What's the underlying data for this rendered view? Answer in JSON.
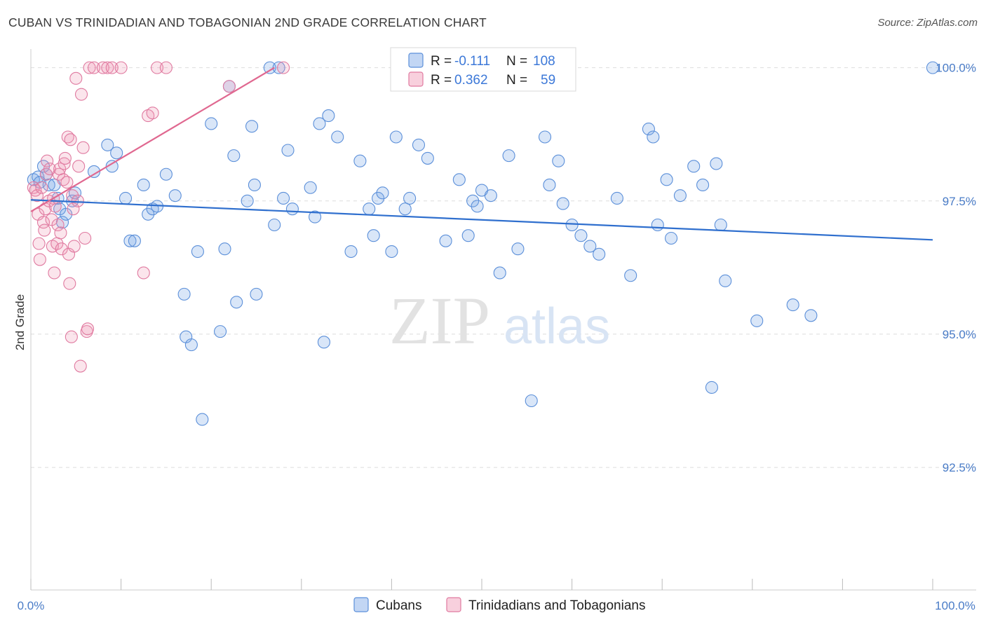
{
  "title": "CUBAN VS TRINIDADIAN AND TOBAGONIAN 2ND GRADE CORRELATION CHART",
  "source": "Source: ZipAtlas.com",
  "colors": {
    "cubans": "#5b8fd9",
    "cubans_fill": "rgba(120,165,230,0.28)",
    "cubans_line": "#2f6fce",
    "tt": "#e07aa0",
    "tt_fill": "rgba(240,150,180,0.25)",
    "tt_line": "#e06890",
    "grid": "#dddddd",
    "tick": "#4a7cc7"
  },
  "legend": {
    "r_label": "R =",
    "n_label": "N =",
    "cubans_r": "-0.111",
    "cubans_n": "108",
    "tt_r": "0.362",
    "tt_n": "59"
  },
  "watermark": {
    "zip": "ZIP",
    "atlas": "atlas"
  },
  "chart_data": {
    "type": "scatter",
    "xlabel": "",
    "ylabel": "2nd Grade",
    "xlim": [
      0,
      100
    ],
    "ylim": [
      90.2,
      100.35
    ],
    "x_tick_labels": [
      "0.0%",
      "100.0%"
    ],
    "y_ticks": [
      {
        "value": 100.0,
        "label": "100.0%"
      },
      {
        "value": 97.5,
        "label": "97.5%"
      },
      {
        "value": 95.0,
        "label": "95.0%"
      },
      {
        "value": 92.5,
        "label": "92.5%"
      }
    ],
    "series": [
      {
        "name": "Cubans",
        "trend": {
          "x0": 0,
          "y0": 97.52,
          "x1": 100,
          "y1": 96.77
        },
        "points": [
          [
            0.3,
            97.9
          ],
          [
            0.8,
            97.95
          ],
          [
            1.0,
            97.85
          ],
          [
            1.4,
            98.15
          ],
          [
            1.7,
            98.0
          ],
          [
            2.0,
            97.8
          ],
          [
            2.6,
            97.8
          ],
          [
            3.0,
            97.55
          ],
          [
            3.2,
            97.35
          ],
          [
            3.5,
            97.1
          ],
          [
            3.9,
            97.25
          ],
          [
            4.6,
            97.5
          ],
          [
            4.9,
            97.65
          ],
          [
            7.0,
            98.05
          ],
          [
            8.5,
            98.55
          ],
          [
            9.0,
            98.15
          ],
          [
            9.5,
            98.4
          ],
          [
            10.5,
            97.55
          ],
          [
            11.0,
            96.75
          ],
          [
            11.5,
            96.75
          ],
          [
            12.5,
            97.8
          ],
          [
            13.0,
            97.25
          ],
          [
            13.5,
            97.35
          ],
          [
            14.0,
            97.4
          ],
          [
            15.0,
            98.0
          ],
          [
            16.0,
            97.6
          ],
          [
            17.0,
            95.75
          ],
          [
            17.2,
            94.95
          ],
          [
            17.8,
            94.8
          ],
          [
            18.5,
            96.55
          ],
          [
            19.0,
            93.4
          ],
          [
            20.0,
            98.95
          ],
          [
            21.0,
            95.05
          ],
          [
            21.5,
            96.6
          ],
          [
            22.0,
            99.65
          ],
          [
            22.5,
            98.35
          ],
          [
            22.8,
            95.6
          ],
          [
            24.0,
            97.5
          ],
          [
            24.5,
            98.9
          ],
          [
            24.8,
            97.8
          ],
          [
            25.0,
            95.75
          ],
          [
            26.5,
            100.0
          ],
          [
            27.0,
            97.05
          ],
          [
            27.5,
            100.0
          ],
          [
            28.0,
            97.55
          ],
          [
            28.5,
            98.45
          ],
          [
            29.0,
            97.35
          ],
          [
            31.0,
            97.75
          ],
          [
            31.5,
            97.2
          ],
          [
            32.0,
            98.95
          ],
          [
            32.5,
            94.85
          ],
          [
            33.0,
            99.1
          ],
          [
            34.0,
            98.7
          ],
          [
            35.5,
            96.55
          ],
          [
            36.5,
            98.25
          ],
          [
            37.5,
            97.35
          ],
          [
            38.0,
            96.85
          ],
          [
            38.5,
            97.55
          ],
          [
            39.0,
            97.65
          ],
          [
            40.0,
            96.55
          ],
          [
            40.5,
            98.7
          ],
          [
            41.5,
            97.35
          ],
          [
            42.0,
            97.55
          ],
          [
            43.0,
            98.55
          ],
          [
            44.0,
            98.3
          ],
          [
            46.0,
            96.75
          ],
          [
            47.5,
            97.9
          ],
          [
            48.5,
            96.85
          ],
          [
            49.0,
            97.5
          ],
          [
            49.5,
            97.4
          ],
          [
            50.0,
            97.7
          ],
          [
            51.0,
            97.6
          ],
          [
            52.0,
            96.15
          ],
          [
            53.0,
            98.35
          ],
          [
            54.0,
            96.6
          ],
          [
            55.5,
            93.75
          ],
          [
            57.0,
            98.7
          ],
          [
            57.5,
            97.8
          ],
          [
            58.5,
            98.25
          ],
          [
            59.0,
            97.45
          ],
          [
            60.0,
            97.05
          ],
          [
            61.0,
            96.85
          ],
          [
            62.0,
            96.65
          ],
          [
            63.0,
            96.5
          ],
          [
            65.0,
            97.55
          ],
          [
            66.5,
            96.1
          ],
          [
            68.5,
            98.85
          ],
          [
            69.0,
            98.7
          ],
          [
            69.5,
            97.05
          ],
          [
            70.5,
            97.9
          ],
          [
            71.0,
            96.8
          ],
          [
            72.0,
            97.6
          ],
          [
            73.5,
            98.15
          ],
          [
            74.5,
            97.8
          ],
          [
            75.5,
            94.0
          ],
          [
            76.0,
            98.2
          ],
          [
            76.5,
            97.05
          ],
          [
            77.0,
            96.0
          ],
          [
            80.5,
            95.25
          ],
          [
            84.5,
            95.55
          ],
          [
            86.5,
            95.35
          ],
          [
            100.0,
            100.0
          ]
        ]
      },
      {
        "name": "Trinidadians and Tobagonians",
        "trend": {
          "x0": 0,
          "y0": 97.3,
          "x1": 27,
          "y1": 100.0
        },
        "points": [
          [
            0.3,
            97.75
          ],
          [
            0.5,
            97.7
          ],
          [
            0.7,
            97.6
          ],
          [
            0.8,
            97.25
          ],
          [
            0.9,
            96.7
          ],
          [
            1.0,
            96.4
          ],
          [
            1.2,
            97.75
          ],
          [
            1.4,
            97.1
          ],
          [
            1.5,
            96.95
          ],
          [
            1.6,
            97.35
          ],
          [
            1.7,
            98.0
          ],
          [
            1.8,
            98.25
          ],
          [
            2.0,
            97.5
          ],
          [
            2.1,
            98.1
          ],
          [
            2.3,
            97.15
          ],
          [
            2.4,
            96.65
          ],
          [
            2.5,
            97.55
          ],
          [
            2.6,
            96.15
          ],
          [
            2.7,
            97.4
          ],
          [
            2.9,
            96.7
          ],
          [
            3.0,
            97.05
          ],
          [
            3.1,
            98.0
          ],
          [
            3.2,
            98.1
          ],
          [
            3.3,
            96.9
          ],
          [
            3.4,
            96.6
          ],
          [
            3.6,
            97.9
          ],
          [
            3.7,
            98.2
          ],
          [
            3.8,
            98.3
          ],
          [
            4.0,
            97.85
          ],
          [
            4.1,
            98.7
          ],
          [
            4.2,
            96.5
          ],
          [
            4.3,
            95.95
          ],
          [
            4.4,
            98.65
          ],
          [
            4.5,
            94.95
          ],
          [
            4.6,
            97.6
          ],
          [
            4.7,
            97.35
          ],
          [
            4.8,
            96.65
          ],
          [
            5.0,
            99.8
          ],
          [
            5.2,
            97.5
          ],
          [
            5.3,
            98.15
          ],
          [
            5.5,
            94.4
          ],
          [
            5.6,
            99.5
          ],
          [
            5.8,
            98.5
          ],
          [
            6.0,
            96.8
          ],
          [
            6.2,
            95.05
          ],
          [
            6.3,
            95.1
          ],
          [
            6.5,
            100.0
          ],
          [
            7.0,
            100.0
          ],
          [
            8.0,
            100.0
          ],
          [
            8.5,
            100.0
          ],
          [
            9.0,
            100.0
          ],
          [
            10.0,
            100.0
          ],
          [
            12.5,
            96.15
          ],
          [
            13.0,
            99.1
          ],
          [
            13.5,
            99.15
          ],
          [
            14.0,
            100.0
          ],
          [
            15.0,
            100.0
          ],
          [
            22.0,
            99.65
          ],
          [
            28.0,
            100.0
          ]
        ]
      }
    ],
    "grid": true,
    "legend_placement": "top-center"
  }
}
